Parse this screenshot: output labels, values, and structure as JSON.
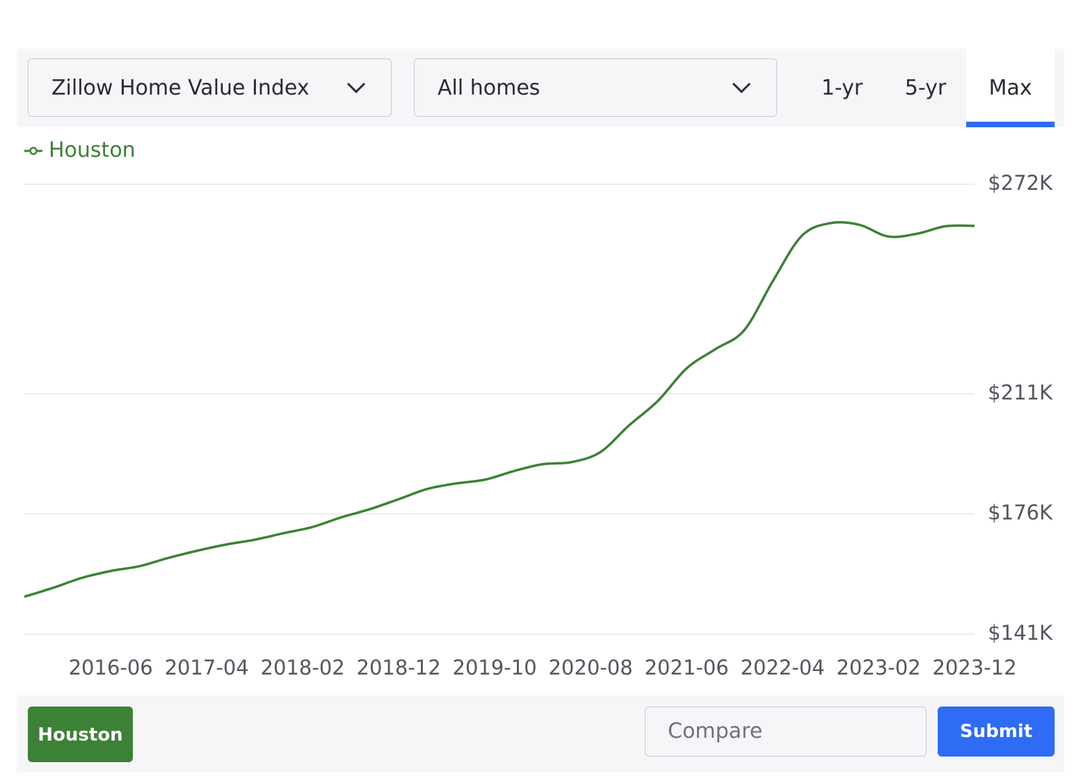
{
  "controls": {
    "dropdowns": [
      "Zillow Home Value Index",
      "All homes"
    ],
    "tabs": [
      "1-yr",
      "5-yr",
      "Max"
    ]
  },
  "chart_data": {
    "type": "line",
    "x": [
      "2015-09",
      "2015-12",
      "2016-03",
      "2016-06",
      "2016-09",
      "2016-12",
      "2017-03",
      "2017-06",
      "2017-09",
      "2017-12",
      "2018-03",
      "2018-06",
      "2018-09",
      "2018-12",
      "2019-03",
      "2019-06",
      "2019-09",
      "2019-12",
      "2020-03",
      "2020-06",
      "2020-09",
      "2020-12",
      "2021-03",
      "2021-06",
      "2021-09",
      "2021-12",
      "2022-03",
      "2022-06",
      "2022-09",
      "2022-12",
      "2023-03",
      "2023-06",
      "2023-09",
      "2023-12"
    ],
    "series": [
      {
        "name": "Houston",
        "color": "#3d8136",
        "values": [
          151900,
          154500,
          157400,
          159400,
          160800,
          163200,
          165300,
          167100,
          168500,
          170400,
          172200,
          175000,
          177400,
          180300,
          183300,
          184900,
          186000,
          188500,
          190500,
          191100,
          194000,
          201800,
          208900,
          218400,
          224000,
          229500,
          243900,
          257000,
          260700,
          260200,
          256800,
          257600,
          259800,
          259900
        ]
      }
    ],
    "xlim": [
      "2015-09",
      "2023-12"
    ],
    "xticks": [
      "2016-06",
      "2017-04",
      "2018-02",
      "2018-12",
      "2019-10",
      "2020-08",
      "2021-06",
      "2022-04",
      "2023-02",
      "2023-12"
    ],
    "ylim": [
      141000,
      272000
    ],
    "yticks": [
      {
        "value": 141000,
        "label": "$141K"
      },
      {
        "value": 176000,
        "label": "$176K"
      },
      {
        "value": 211000,
        "label": "$211K"
      },
      {
        "value": 272000,
        "label": "$272K"
      }
    ],
    "grid": true,
    "legend": "top-left"
  },
  "footer": {
    "chip": "Houston",
    "input_placeholder": "Compare",
    "button": "Submit"
  }
}
